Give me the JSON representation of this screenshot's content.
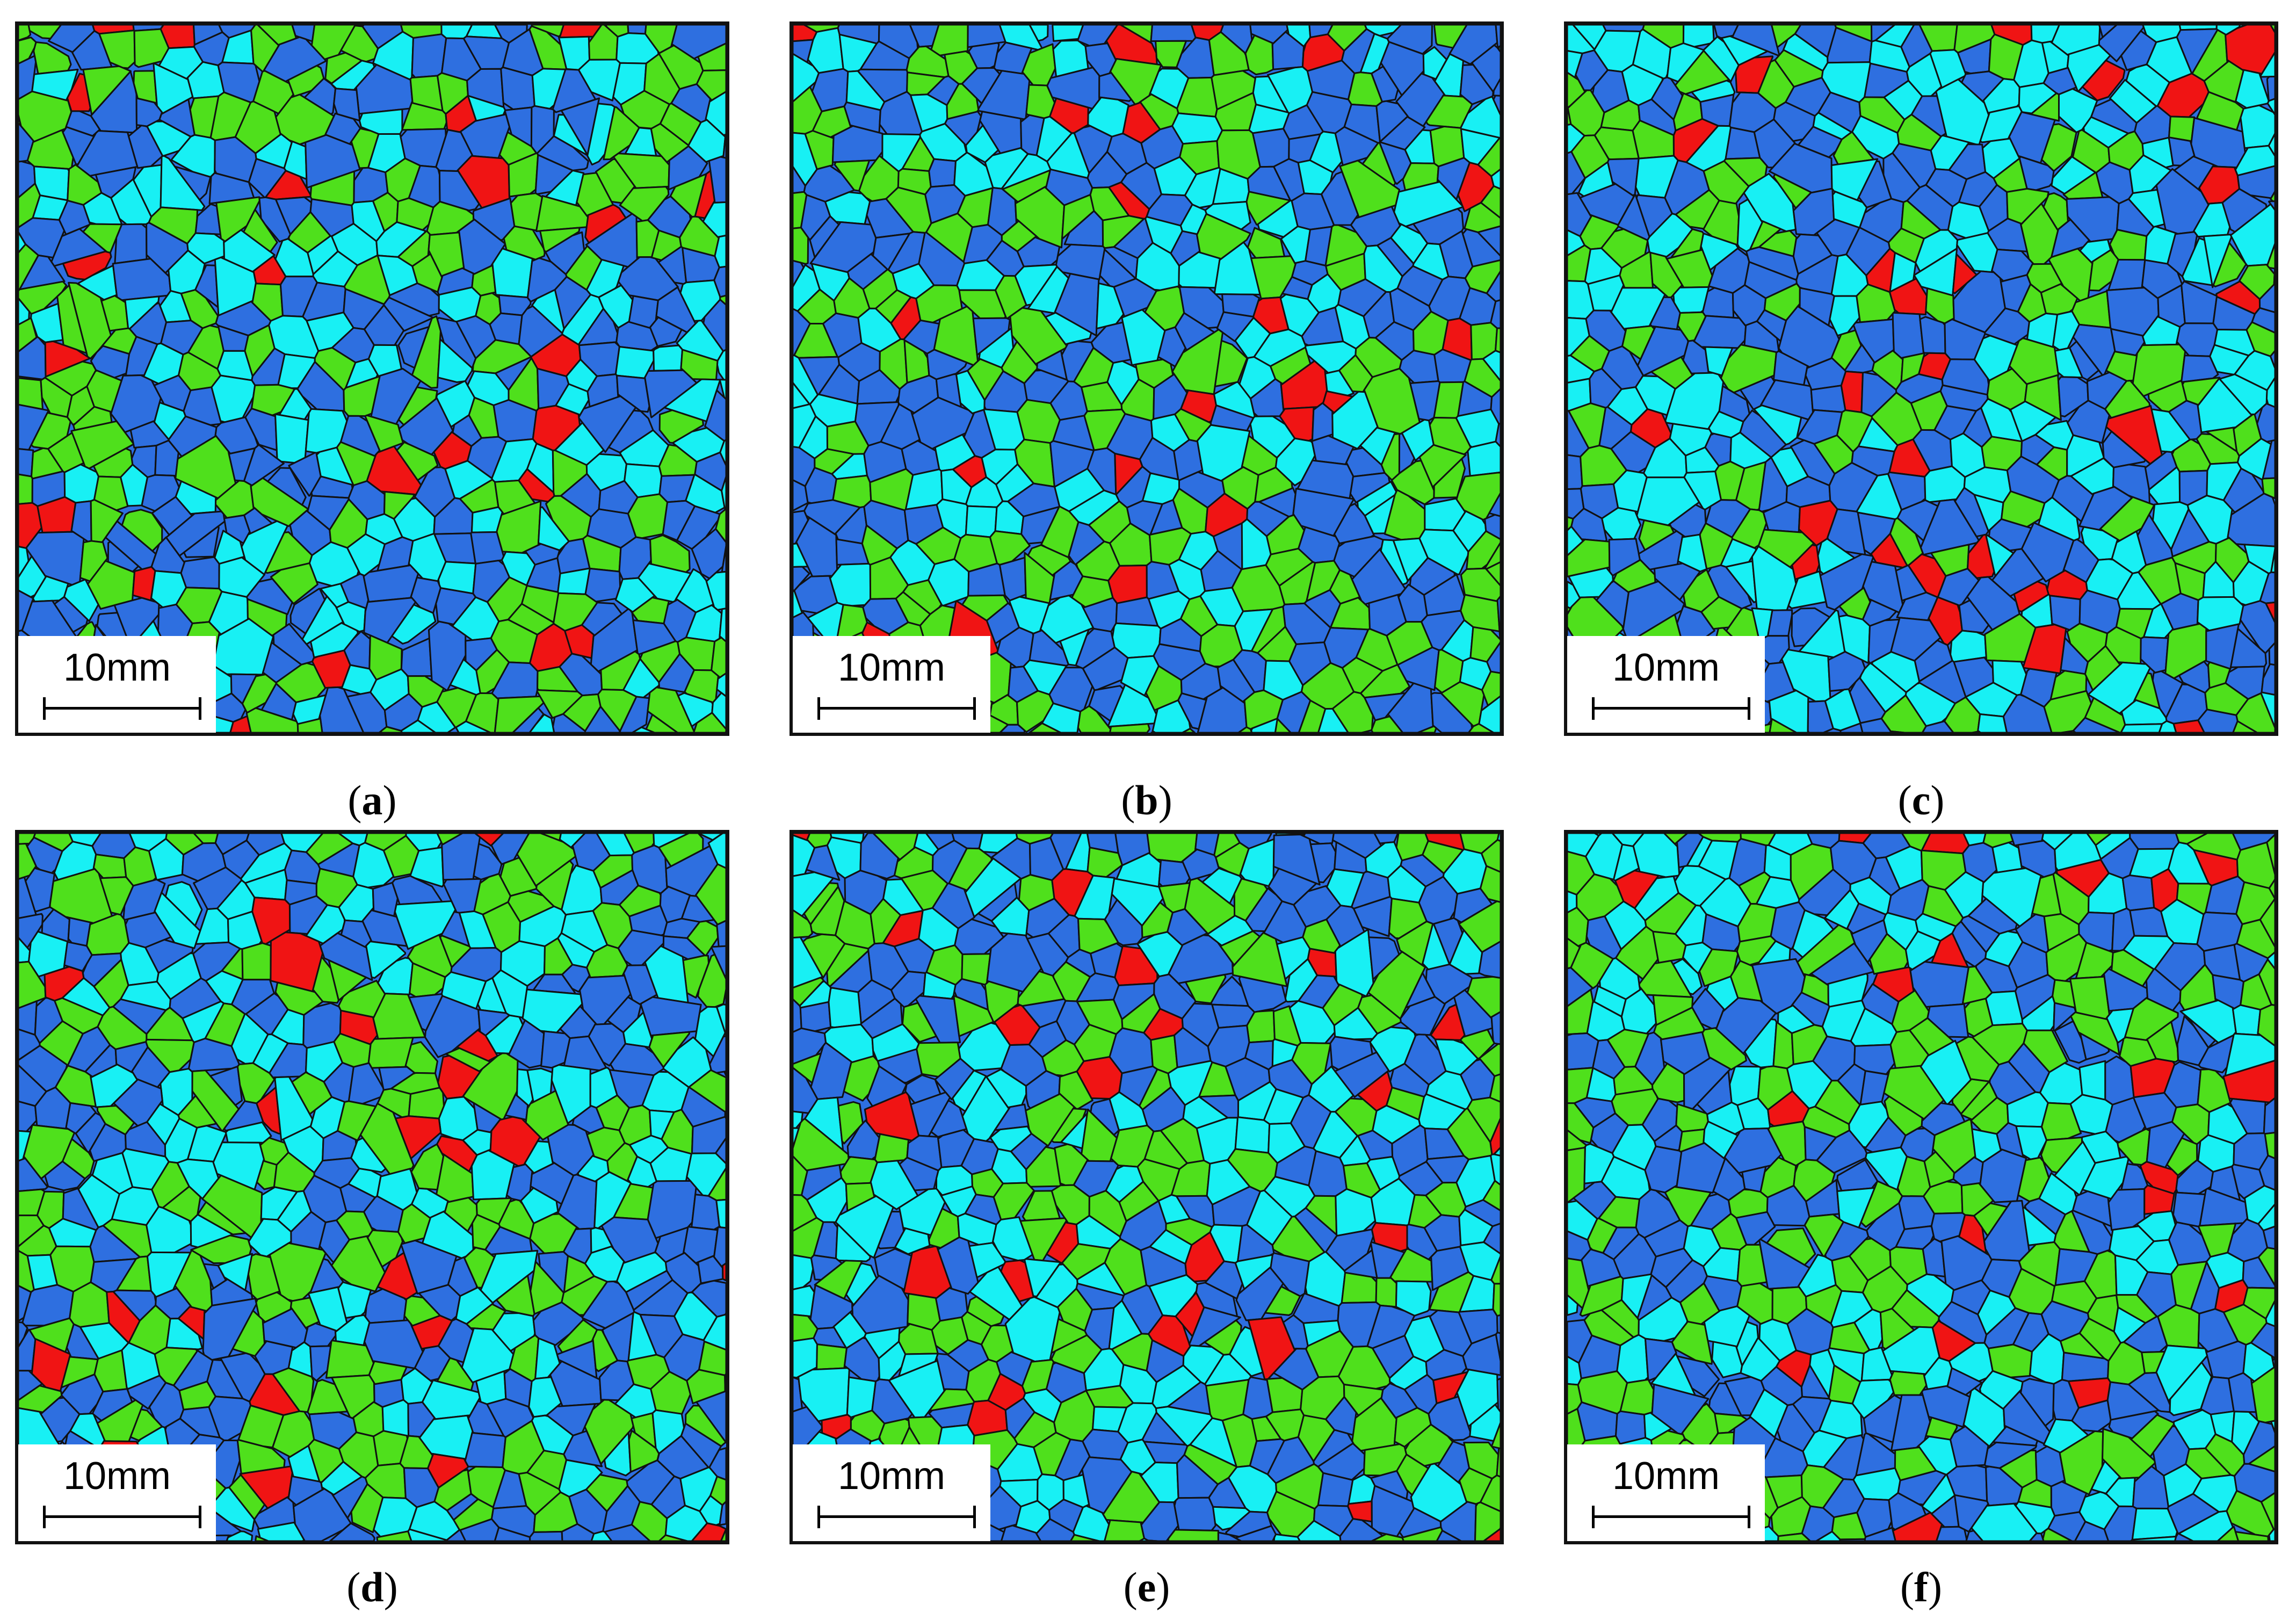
{
  "colors": {
    "blue": "#2e6fe0",
    "cyan": "#18f0f4",
    "green": "#4fe01c",
    "red": "#f01414",
    "boundary": "#111111"
  },
  "panels": [
    {
      "id": "a",
      "caption_open": "(",
      "caption_letter": "a",
      "caption_close": ")",
      "scale_label": "10mm",
      "seed": 11
    },
    {
      "id": "b",
      "caption_open": "(",
      "caption_letter": "b",
      "caption_close": ")",
      "scale_label": "10mm",
      "seed": 23
    },
    {
      "id": "c",
      "caption_open": "(",
      "caption_letter": "c",
      "caption_close": ")",
      "scale_label": "10mm",
      "seed": 37
    },
    {
      "id": "d",
      "caption_open": "(",
      "caption_letter": "d",
      "caption_close": ")",
      "scale_label": "10mm",
      "seed": 41
    },
    {
      "id": "e",
      "caption_open": "(",
      "caption_letter": "e",
      "caption_close": ")",
      "scale_label": "10mm",
      "seed": 53
    },
    {
      "id": "f",
      "caption_open": "(",
      "caption_letter": "f",
      "caption_close": ")",
      "scale_label": "10mm",
      "seed": 67
    }
  ]
}
